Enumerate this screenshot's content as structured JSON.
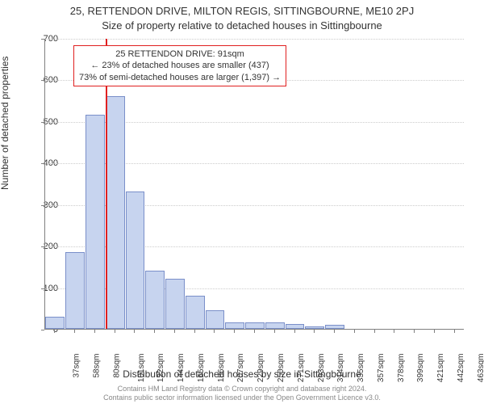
{
  "title": "25, RETTENDON DRIVE, MILTON REGIS, SITTINGBOURNE, ME10 2PJ",
  "subtitle": "Size of property relative to detached houses in Sittingbourne",
  "y_axis_label": "Number of detached properties",
  "x_axis_label": "Distribution of detached houses by size in Sittingbourne",
  "chart": {
    "type": "bar",
    "ylim": [
      0,
      700
    ],
    "ytick_step": 100,
    "yticks": [
      0,
      100,
      200,
      300,
      400,
      500,
      600,
      700
    ],
    "x_labels": [
      "37sqm",
      "58sqm",
      "80sqm",
      "101sqm",
      "122sqm",
      "144sqm",
      "165sqm",
      "186sqm",
      "207sqm",
      "229sqm",
      "250sqm",
      "271sqm",
      "293sqm",
      "314sqm",
      "335sqm",
      "357sqm",
      "378sqm",
      "399sqm",
      "421sqm",
      "442sqm",
      "463sqm"
    ],
    "values": [
      30,
      185,
      515,
      560,
      330,
      140,
      120,
      80,
      45,
      15,
      15,
      15,
      12,
      5,
      10,
      0,
      0,
      0,
      0,
      0,
      0
    ],
    "bar_fill": "#c7d4ef",
    "bar_stroke": "#7a8fc9",
    "grid_color": "#cccccc",
    "axis_color": "#808080",
    "background": "#ffffff",
    "marker_value_sqm": 91,
    "marker_color": "#e02020",
    "x_min_sqm": 37,
    "x_bin_width_sqm": 21.3
  },
  "annotation": {
    "line1": "25 RETTENDON DRIVE: 91sqm",
    "line2": "← 23% of detached houses are smaller (437)",
    "line3": "73% of semi-detached houses are larger (1,397) →",
    "border_color": "#e02020"
  },
  "footer": {
    "line1": "Contains HM Land Registry data © Crown copyright and database right 2024.",
    "line2": "Contains public sector information licensed under the Open Government Licence v3.0."
  }
}
